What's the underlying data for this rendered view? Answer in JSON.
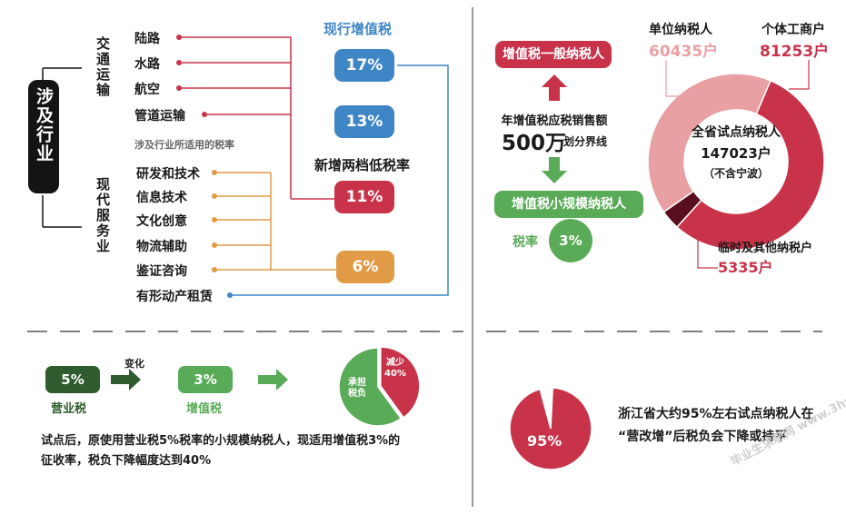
{
  "industries": {
    "label": "涉及行业",
    "transport": {
      "label": "交通运输",
      "items": [
        "陆路",
        "水路",
        "航空",
        "管道运输"
      ]
    },
    "rates_caption": "涉及行业所适用的税率",
    "services": {
      "label": "现代服务业",
      "items": [
        "研发和技术",
        "信息技术",
        "文化创意",
        "物流辅助",
        "鉴证咨询",
        "有形动产租赁"
      ]
    }
  },
  "rates": {
    "current_title": "现行增值税",
    "new_title": "新增两档低税率",
    "values": [
      "17%",
      "13%",
      "11%",
      "6%"
    ]
  },
  "taxpayers": {
    "general": "增值税一般纳税人",
    "threshold_line1": "年增值税应税销售额",
    "threshold_amount": "500万",
    "threshold_suffix": "划分界线",
    "small_scale": "增值税小规模纳税人",
    "rate_label": "税率",
    "rate_value": "3%"
  },
  "donut": {
    "unit_label": "单位纳税人",
    "unit_value": "60435户",
    "individual_label": "个体工商户",
    "individual_value": "81253户",
    "center_title": "全省试点纳税人",
    "center_value": "147023户",
    "center_note": "（不含宁波）",
    "other_label": "临时及其他纳税户",
    "other_value": "5335户"
  },
  "change": {
    "old_rate": "5%",
    "old_label": "营业税",
    "arrow_label": "变化",
    "new_rate": "3%",
    "new_label": "增值税",
    "pie_reduce": "减少",
    "pie_reduce_value": "40%",
    "pie_bear": "承担",
    "pie_bear2": "税负",
    "note_line1": "试点后，原使用营业税5%税率的小规模纳税人，现适用增值税3%的",
    "note_line2": "征收率，税负下降幅度达到40%"
  },
  "zhejiang": {
    "pie_value": "95%",
    "text_line1": "浙江省大约95%左右试点纳税人在",
    "text_line2": "“营改增”后税负会下降或持平"
  },
  "watermark": "毕业生求职网 www.3hvv.com",
  "colors": {
    "red": "#c8334a",
    "blue": "#3f86c6",
    "orange": "#e19a46",
    "green": "#5aab58",
    "darkgreen": "#2e5c2e",
    "pink": "#e8a0a3",
    "dark": "#141414"
  },
  "chart_data": [
    {
      "type": "pie",
      "variant": "donut",
      "categories": [
        "单位纳税人",
        "个体工商户",
        "临时及其他纳税户"
      ],
      "values": [
        60435,
        81253,
        5335
      ],
      "total": 147023,
      "center_text": "全省试点纳税人 147023户 （不含宁波）"
    },
    {
      "type": "pie",
      "categories": [
        "减少",
        "承担税负"
      ],
      "values": [
        40,
        60
      ]
    },
    {
      "type": "pie",
      "categories": [
        "95%",
        ""
      ],
      "values": [
        95,
        5
      ]
    }
  ]
}
